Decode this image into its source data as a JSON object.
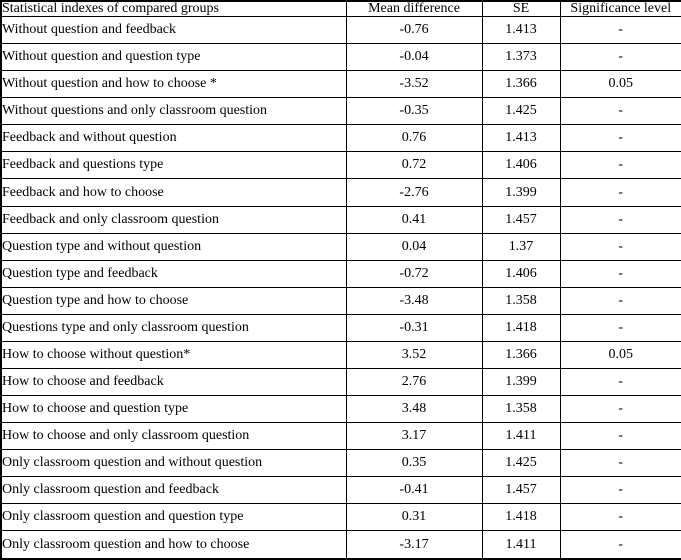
{
  "table": {
    "headers": [
      "Statistical indexes of compared groups",
      "Mean difference",
      "SE",
      "Significance level"
    ],
    "rows": [
      [
        "Without question and feedback",
        "-0.76",
        "1.413",
        "-"
      ],
      [
        "Without question and question type",
        "-0.04",
        "1.373",
        "-"
      ],
      [
        "Without question and how to choose *",
        "-3.52",
        "1.366",
        "0.05"
      ],
      [
        "Without questions and only classroom question",
        "-0.35",
        "1.425",
        "-"
      ],
      [
        "Feedback and without question",
        "0.76",
        "1.413",
        "-"
      ],
      [
        "Feedback and questions type",
        "0.72",
        "1.406",
        "-"
      ],
      [
        "Feedback and how to choose",
        "-2.76",
        "1.399",
        "-"
      ],
      [
        "Feedback and only classroom question",
        "0.41",
        "1.457",
        "-"
      ],
      [
        "Question type and without question",
        "0.04",
        "1.37",
        "-"
      ],
      [
        "Question type and feedback",
        "-0.72",
        "1.406",
        "-"
      ],
      [
        "Question type and how to choose",
        "-3.48",
        "1.358",
        "-"
      ],
      [
        "Questions type and only classroom question",
        "-0.31",
        "1.418",
        "-"
      ],
      [
        "How to choose without question*",
        "3.52",
        "1.366",
        "0.05"
      ],
      [
        "How to choose and feedback",
        "2.76",
        "1.399",
        "-"
      ],
      [
        "How to choose and question type",
        "3.48",
        "1.358",
        "-"
      ],
      [
        "How to choose and only classroom question",
        "3.17",
        "1.411",
        "-"
      ],
      [
        "Only classroom question and without question",
        "0.35",
        "1.425",
        "-"
      ],
      [
        "Only classroom question and feedback",
        "-0.41",
        "1.457",
        "-"
      ],
      [
        "Only classroom question and question type",
        "0.31",
        "1.418",
        "-"
      ],
      [
        "Only classroom question and how to choose",
        "-3.17",
        "1.411",
        "-"
      ]
    ],
    "colors": {
      "border": "#000000",
      "text": "#000000",
      "background": "#ffffff"
    }
  }
}
